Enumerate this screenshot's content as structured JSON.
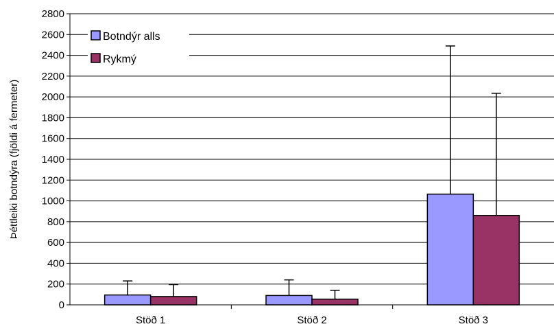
{
  "chart_data": {
    "type": "bar",
    "ylabel": "Þéttleiki botndýra (fjöldi á fermeter)",
    "xlabel": "",
    "categories": [
      "Stöð 1",
      "Stöð 2",
      "Stöð 3"
    ],
    "series": [
      {
        "name": "Botndýr alls",
        "values": [
          95,
          90,
          1065
        ],
        "error_upper": [
          230,
          240,
          2490
        ],
        "color": "#9999ff"
      },
      {
        "name": "Rykmý",
        "values": [
          80,
          55,
          860
        ],
        "error_upper": [
          195,
          140,
          2035
        ],
        "color": "#993366"
      }
    ],
    "ylim": [
      0,
      2800
    ],
    "ytick_step": 200,
    "yticks": [
      "0",
      "200",
      "400",
      "600",
      "800",
      "1000",
      "1200",
      "1400",
      "1600",
      "1800",
      "2000",
      "2200",
      "2400",
      "2600",
      "2800"
    ],
    "grid": true,
    "legend_position": "top-left"
  }
}
